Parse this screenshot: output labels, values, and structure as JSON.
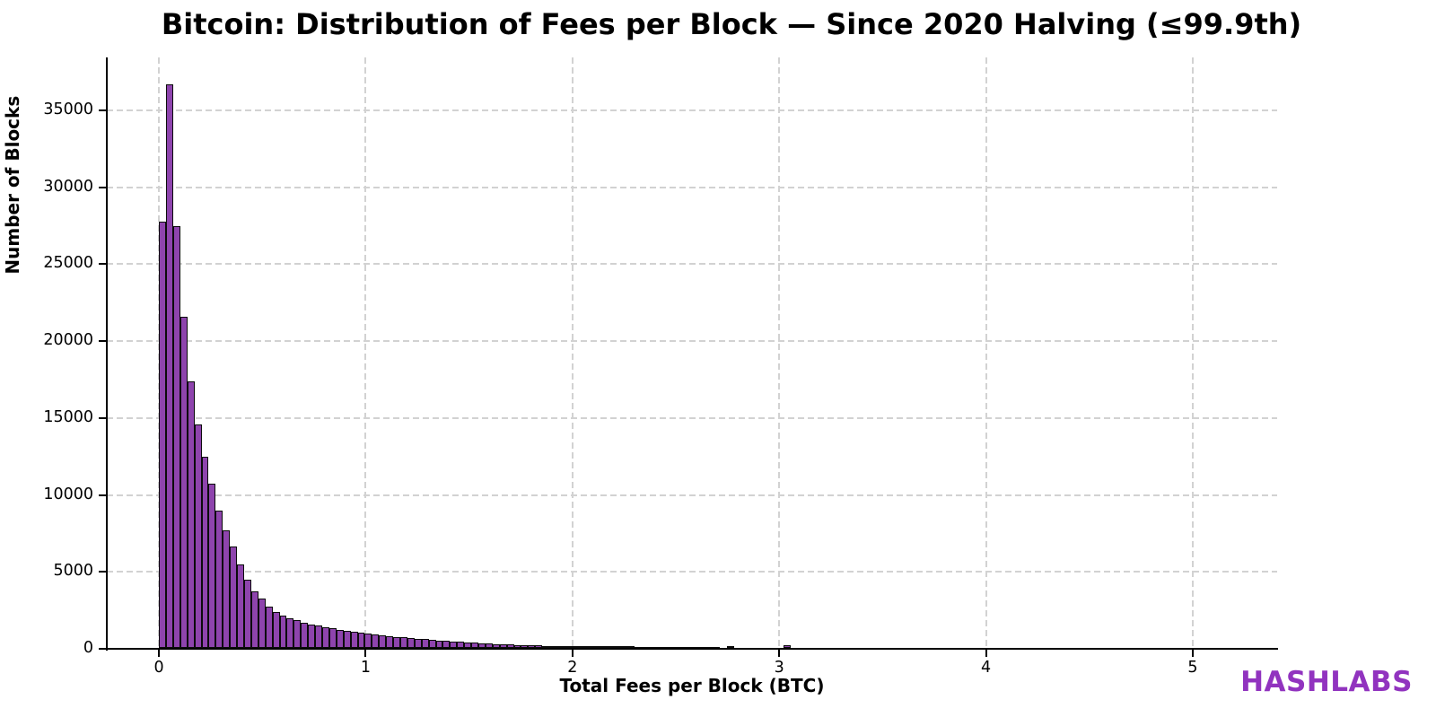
{
  "branding": {
    "logo_text": "HASHLABS",
    "logo_color": "#9133BF"
  },
  "chart_data": {
    "type": "bar",
    "subtype": "histogram",
    "title": "Bitcoin: Distribution of Fees per Block — Since 2020 Halving (≤99.9th)",
    "xlabel": "Total Fees per Block (BTC)",
    "ylabel": "Number of Blocks",
    "bin_start": 0,
    "bin_width": 0.034333,
    "counts": [
      27700,
      36600,
      27400,
      21500,
      17300,
      14500,
      12400,
      10700,
      8900,
      7650,
      6600,
      5400,
      4430,
      3670,
      3210,
      2680,
      2330,
      2100,
      1930,
      1780,
      1650,
      1540,
      1440,
      1350,
      1270,
      1190,
      1120,
      1050,
      990,
      930,
      870,
      820,
      770,
      720,
      680,
      640,
      600,
      560,
      520,
      485,
      450,
      420,
      390,
      360,
      330,
      305,
      280,
      258,
      238,
      220,
      203,
      187,
      172,
      158,
      146,
      134,
      124,
      114,
      105,
      97,
      90,
      84,
      78,
      73,
      68,
      64,
      60,
      56,
      53,
      50,
      47,
      44,
      42,
      40,
      38,
      36,
      34,
      32,
      31,
      29,
      100,
      27,
      26,
      25,
      24,
      23,
      22,
      21,
      180,
      19,
      18,
      17,
      16,
      15,
      14,
      13,
      12,
      11,
      10,
      9,
      8,
      7,
      6,
      5,
      5,
      4,
      4,
      3,
      3,
      3,
      2,
      2,
      2,
      2,
      2,
      1,
      1,
      1,
      1,
      2,
      1,
      1,
      0,
      1,
      1,
      0,
      1,
      0,
      1,
      1,
      0,
      0,
      1,
      0,
      0,
      1,
      0,
      1,
      0,
      0,
      1,
      0,
      0,
      0,
      1,
      0,
      0,
      1,
      0,
      1
    ],
    "x_ticks": [
      0,
      1,
      2,
      3,
      4,
      5
    ],
    "y_ticks": [
      0,
      5000,
      10000,
      15000,
      20000,
      25000,
      30000,
      35000
    ],
    "xlim": [
      -0.252,
      5.408
    ],
    "ylim": [
      0,
      38430
    ],
    "grid": "dashed-both-axes",
    "legend": "none",
    "bar_fill": "#8E44AD",
    "bar_edge": "#0b0b0b",
    "grid_color": "#d2d2d2"
  }
}
